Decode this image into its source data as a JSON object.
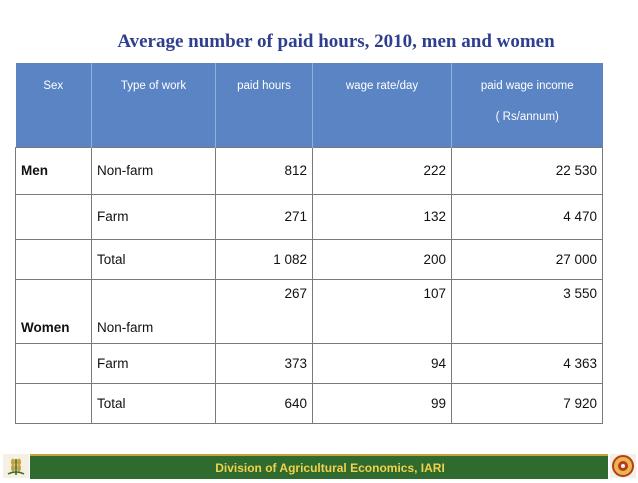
{
  "title": "Average number of paid hours, 2010, men and women",
  "table": {
    "headers": {
      "sex": "Sex",
      "type_of_work": "Type of work",
      "paid_hours": "paid  hours",
      "wage_rate": "wage rate/day",
      "paid_wage_income": "paid wage income",
      "paid_wage_income_unit": "( Rs/annum)"
    },
    "rows": [
      {
        "sex": "Men",
        "type": "Non-farm",
        "hours": "812",
        "wage": "222",
        "income": "22 530"
      },
      {
        "sex": "",
        "type": "Farm",
        "hours": "271",
        "wage": "132",
        "income": "4 470"
      },
      {
        "sex": "",
        "type": "Total",
        "hours": "1 082",
        "wage": "200",
        "income": "27 000"
      },
      {
        "sex": "Women",
        "type": "Non-farm",
        "hours": "267",
        "wage": "107",
        "income": "3 550"
      },
      {
        "sex": "",
        "type": "Farm",
        "hours": "373",
        "wage": "94",
        "income": "4 363"
      },
      {
        "sex": "",
        "type": "Total",
        "hours": "640",
        "wage": "99",
        "income": "7 920"
      }
    ]
  },
  "footer": {
    "text": "Division of Agricultural Economics, IARI",
    "left_logo_icon": "wheat-emblem-icon",
    "right_logo_icon": "institute-seal-icon"
  }
}
